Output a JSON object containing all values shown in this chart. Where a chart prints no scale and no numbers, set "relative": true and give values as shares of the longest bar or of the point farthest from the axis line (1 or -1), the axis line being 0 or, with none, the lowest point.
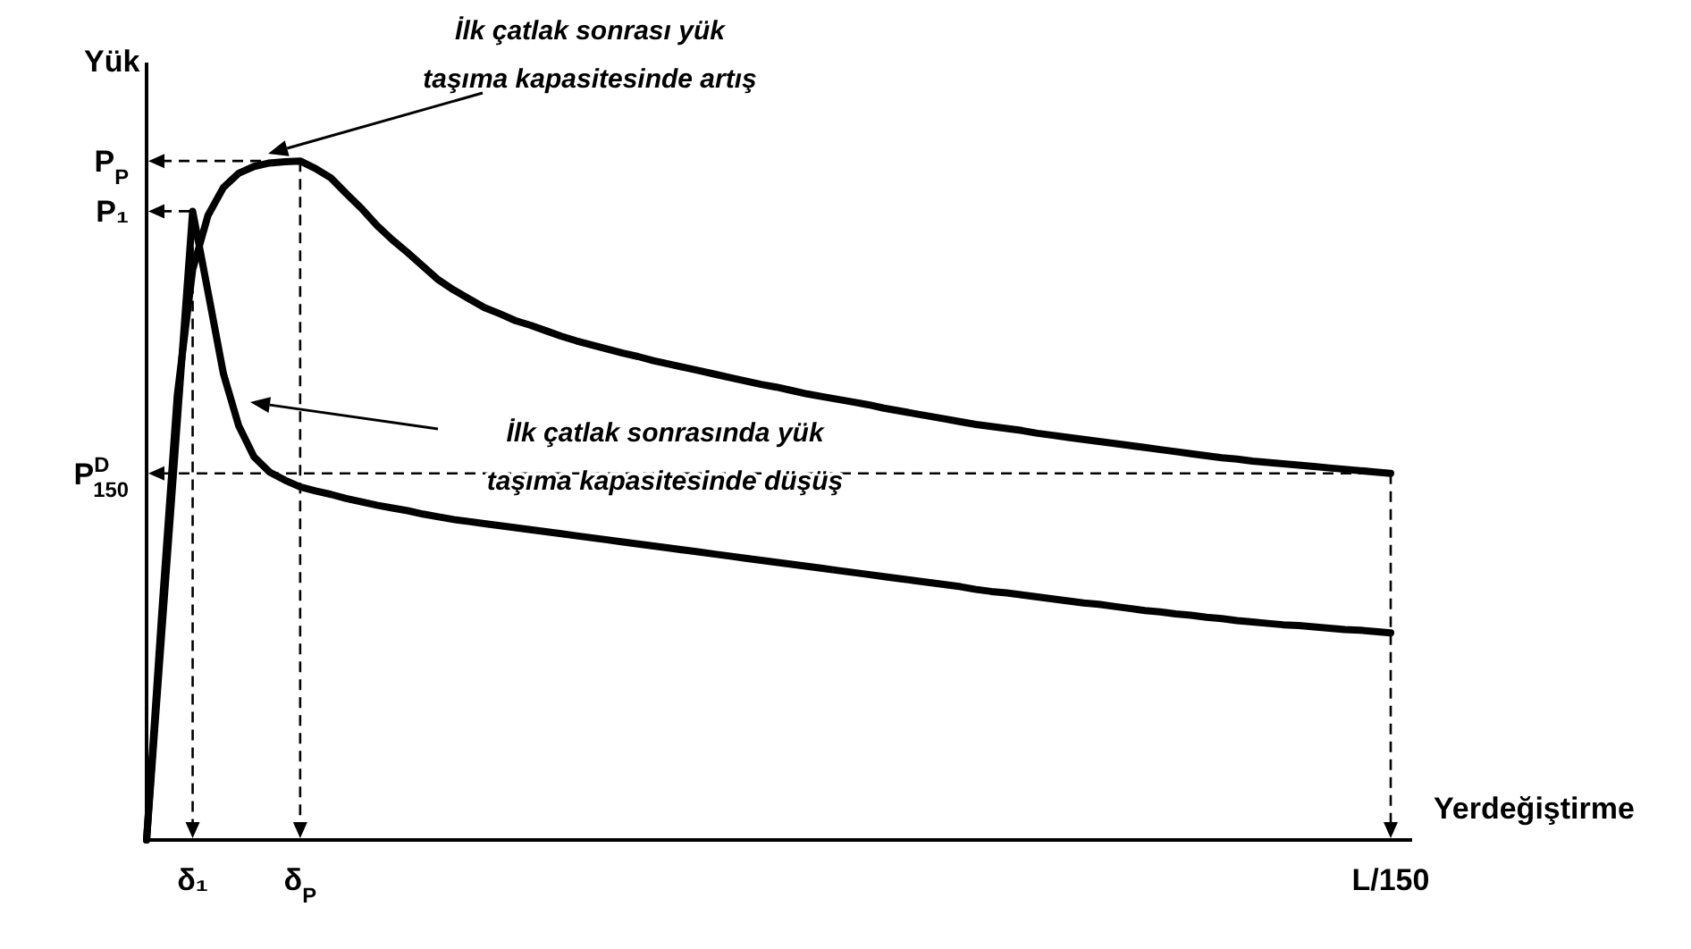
{
  "chart_data": {
    "type": "line",
    "relative": true,
    "xlabel": "Yerdeğiştirme",
    "ylabel": "Yük",
    "line_style": "solid",
    "marker": "none",
    "categories": [
      null,
      null,
      null,
      "δ₁",
      null,
      null,
      null,
      null,
      null,
      null,
      "δ$_{P}$",
      null,
      null,
      null,
      null,
      null,
      null,
      null,
      null,
      null,
      null,
      null,
      null,
      null,
      null,
      null,
      null,
      null,
      null,
      null,
      null,
      null,
      null,
      null,
      null,
      null,
      null,
      null,
      null,
      null,
      null,
      null,
      null,
      null,
      null,
      null,
      null,
      null,
      null,
      null,
      null,
      null,
      null,
      null,
      null,
      null,
      null,
      null,
      null,
      null,
      null,
      null,
      null,
      null,
      null,
      null,
      null,
      null,
      null,
      null,
      null,
      null,
      null,
      null,
      null,
      null,
      null,
      null,
      null,
      null,
      null,
      "L/150"
    ],
    "ref_lines": [
      {
        "axis": "y",
        "value": 1,
        "label": "P$_{P}$",
        "line_style": "dashed"
      },
      {
        "axis": "y",
        "value": 0.926,
        "label": "P₁",
        "line_style": "dashed"
      },
      {
        "axis": "y",
        "value": 0.54,
        "label": "P$^{D}$$_{150}$",
        "line_style": "dashed"
      }
    ],
    "series": [
      {
        "color": "#000000",
        "values": [
          0,
          0.309,
          0.617,
          0.926,
          0.807,
          0.687,
          0.61,
          0.564,
          0.542,
          0.53,
          0.52,
          0.514,
          0.509,
          0.503,
          0.498,
          0.493,
          0.489,
          0.485,
          0.48,
          0.476,
          0.472,
          0.469,
          0.466,
          0.463,
          0.46,
          0.457,
          0.454,
          0.451,
          0.448,
          0.445,
          0.442,
          0.439,
          0.436,
          0.433,
          0.43,
          0.427,
          0.424,
          0.421,
          0.418,
          0.415,
          0.412,
          0.409,
          0.406,
          0.403,
          0.4,
          0.397,
          0.394,
          0.391,
          0.388,
          0.385,
          0.382,
          0.379,
          0.376,
          0.373,
          0.369,
          0.366,
          0.364,
          0.361,
          0.358,
          0.355,
          0.352,
          0.349,
          0.347,
          0.344,
          0.341,
          0.338,
          0.336,
          0.333,
          0.331,
          0.328,
          0.326,
          0.323,
          0.321,
          0.319,
          0.317,
          0.316,
          0.314,
          0.312,
          0.31,
          0.309,
          0.307,
          0.305
        ]
      },
      {
        "color": "#000000",
        "values": [
          0,
          0.338,
          0.655,
          0.84,
          0.92,
          0.961,
          0.982,
          0.992,
          0.997,
          0.999,
          1,
          0.989,
          0.975,
          0.952,
          0.93,
          0.905,
          0.884,
          0.865,
          0.845,
          0.825,
          0.81,
          0.797,
          0.784,
          0.775,
          0.765,
          0.758,
          0.75,
          0.742,
          0.735,
          0.729,
          0.723,
          0.717,
          0.712,
          0.706,
          0.701,
          0.696,
          0.691,
          0.686,
          0.681,
          0.676,
          0.671,
          0.667,
          0.662,
          0.657,
          0.653,
          0.649,
          0.645,
          0.641,
          0.636,
          0.632,
          0.628,
          0.624,
          0.62,
          0.616,
          0.612,
          0.609,
          0.606,
          0.603,
          0.599,
          0.596,
          0.593,
          0.59,
          0.587,
          0.584,
          0.581,
          0.578,
          0.575,
          0.572,
          0.569,
          0.566,
          0.563,
          0.561,
          0.558,
          0.556,
          0.554,
          0.552,
          0.55,
          0.548,
          0.546,
          0.544,
          0.542,
          0.54
        ]
      }
    ],
    "annotations": [
      "İlk çatlak sonrası yük taşıma kapasitesinde artış",
      "İlk çatlak sonrasında yük taşıma kapasitesinde düşüş"
    ]
  }
}
